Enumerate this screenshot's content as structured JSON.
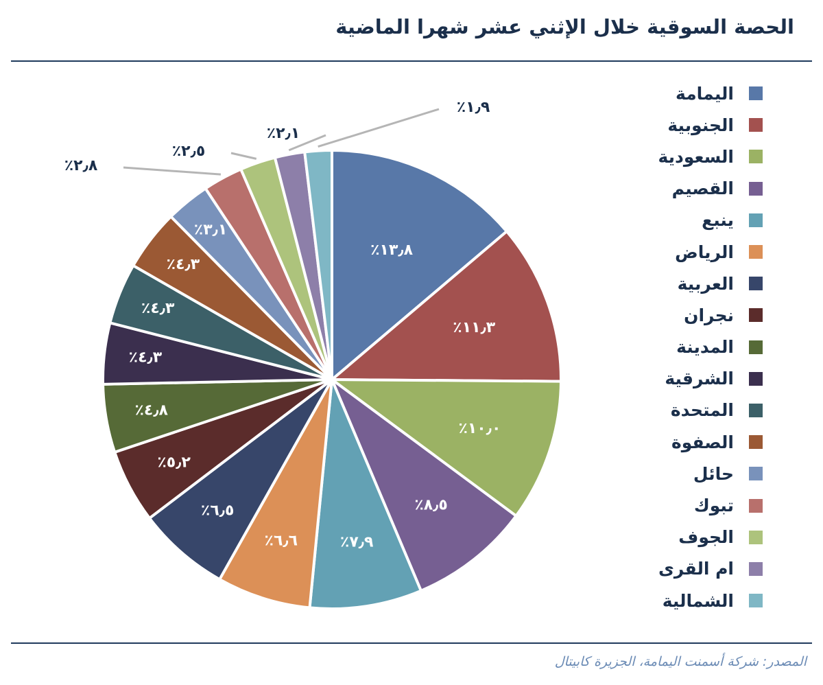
{
  "title": "الحصة السوقية خلال الإثني عشر شهرا الماضية",
  "source": "المصدر: شركة أسمنت اليمامة، الجزيرة كابيتال",
  "chart_data": {
    "type": "pie",
    "title": "الحصة السوقية خلال الإثني عشر شهرا الماضية",
    "legend_position": "right",
    "categories": [
      "اليمامة",
      "الجنوبية",
      "السعودية",
      "القصيم",
      "ينبع",
      "الرياض",
      "العربية",
      "نجران",
      "المدينة",
      "الشرقية",
      "المتحدة",
      "الصفوة",
      "حائل",
      "تبوك",
      "الجوف",
      "ام القرى",
      "الشمالية"
    ],
    "values": [
      13.8,
      11.3,
      10.0,
      8.5,
      7.9,
      6.6,
      6.5,
      5.2,
      4.8,
      4.3,
      4.3,
      4.3,
      3.1,
      2.8,
      2.5,
      2.1,
      1.9
    ],
    "labels": [
      "٪١٣٫٨",
      "٪١١٫٣",
      "٪١٠٫٠",
      "٪٨٫٥",
      "٪٧٫٩",
      "٪٦٫٦",
      "٪٦٫٥",
      "٪٥٫٢",
      "٪٤٫٨",
      "٪٤٫٣",
      "٪٤٫٣",
      "٪٤٫٣",
      "٪٣٫١",
      "٪٢٫٨",
      "٪٢٫٥",
      "٪٢٫١",
      "٪١٫٩"
    ],
    "colors": [
      "#5878a8",
      "#a3514f",
      "#9bb264",
      "#765f92",
      "#63a1b4",
      "#dc9057",
      "#37466a",
      "#5b2c2b",
      "#566a37",
      "#3b2f4e",
      "#3c6068",
      "#9b5934",
      "#7992bb",
      "#b8706c",
      "#adc37c",
      "#8d7fa9",
      "#7fb7c5"
    ]
  }
}
